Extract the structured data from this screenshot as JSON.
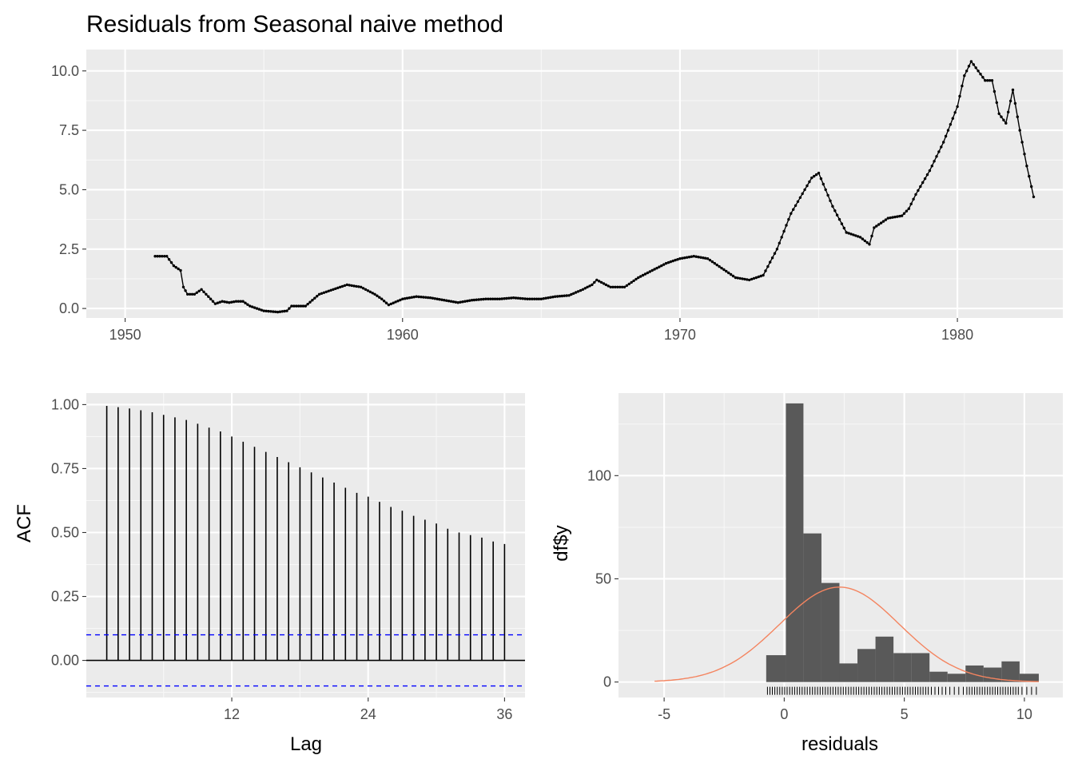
{
  "chart_data": [
    {
      "type": "line",
      "title": "Residuals from Seasonal naive method",
      "xlabel": "",
      "ylabel": "",
      "xlim": [
        1948.6,
        1983.8
      ],
      "ylim": [
        -0.4,
        10.9
      ],
      "x_ticks": [
        1950,
        1960,
        1970,
        1980
      ],
      "x_tick_labels": [
        "1950",
        "1960",
        "1970",
        "1980"
      ],
      "y_ticks": [
        0,
        2.5,
        5,
        7.5,
        10
      ],
      "y_tick_labels": [
        "0.0",
        "2.5",
        "5.0",
        "7.5",
        "10.0"
      ],
      "grid": true,
      "markers": true,
      "series": [
        {
          "x": [
            1951.08,
            1951.5,
            1951.75,
            1952.0,
            1952.1,
            1952.25,
            1952.5,
            1952.75,
            1953.0,
            1953.25,
            1953.5,
            1953.75,
            1954.0,
            1954.25,
            1954.5,
            1954.75,
            1955.0,
            1955.5,
            1955.83,
            1956.0,
            1956.5,
            1957.0,
            1957.5,
            1958.0,
            1958.5,
            1959.0,
            1959.25,
            1959.5,
            1960.0,
            1960.5,
            1961.0,
            1961.5,
            1962.0,
            1962.5,
            1963.0,
            1963.5,
            1964.0,
            1964.5,
            1965.0,
            1965.5,
            1966.0,
            1966.5,
            1966.83,
            1967.0,
            1967.5,
            1968.0,
            1968.5,
            1969.0,
            1969.5,
            1970.0,
            1970.5,
            1971.0,
            1971.5,
            1972.0,
            1972.5,
            1973.0,
            1973.5,
            1974.0,
            1974.5,
            1974.75,
            1975.0,
            1975.25,
            1975.5,
            1976.0,
            1976.5,
            1976.83,
            1977.0,
            1977.5,
            1978.0,
            1978.25,
            1978.5,
            1979.0,
            1979.5,
            1980.0,
            1980.25,
            1980.5,
            1980.75,
            1981.0,
            1981.25,
            1981.5,
            1981.75,
            1982.0,
            1982.25,
            1982.5,
            1982.75
          ],
          "values": [
            2.2,
            2.2,
            1.8,
            1.6,
            0.9,
            0.6,
            0.6,
            0.8,
            0.5,
            0.2,
            0.3,
            0.25,
            0.3,
            0.3,
            0.1,
            0.0,
            -0.1,
            -0.15,
            -0.1,
            0.1,
            0.1,
            0.6,
            0.8,
            1.0,
            0.9,
            0.6,
            0.4,
            0.15,
            0.4,
            0.5,
            0.45,
            0.35,
            0.25,
            0.35,
            0.4,
            0.4,
            0.45,
            0.4,
            0.4,
            0.5,
            0.55,
            0.8,
            1.0,
            1.2,
            0.9,
            0.9,
            1.3,
            1.6,
            1.9,
            2.1,
            2.2,
            2.1,
            1.7,
            1.3,
            1.2,
            1.4,
            2.5,
            4.0,
            5.0,
            5.5,
            5.7,
            5.0,
            4.3,
            3.2,
            3.0,
            2.7,
            3.4,
            3.8,
            3.9,
            4.2,
            4.8,
            5.8,
            7.0,
            8.5,
            9.8,
            10.4,
            10.0,
            9.6,
            9.6,
            8.2,
            7.8,
            9.2,
            7.5,
            6.0,
            4.7
          ]
        }
      ]
    },
    {
      "type": "bar",
      "xlabel": "Lag",
      "ylabel": "ACF",
      "xlim": [
        -0.8,
        37.8
      ],
      "ylim": [
        -0.145,
        1.045
      ],
      "x_ticks": [
        12,
        24,
        36
      ],
      "x_tick_labels": [
        "12",
        "24",
        "36"
      ],
      "y_ticks": [
        0,
        0.25,
        0.5,
        0.75,
        1.0
      ],
      "y_tick_labels": [
        "0.00",
        "0.25",
        "0.50",
        "0.75",
        "1.00"
      ],
      "grid": true,
      "confidence_bound": 0.1,
      "lags": [
        1,
        2,
        3,
        4,
        5,
        6,
        7,
        8,
        9,
        10,
        11,
        12,
        13,
        14,
        15,
        16,
        17,
        18,
        19,
        20,
        21,
        22,
        23,
        24,
        25,
        26,
        27,
        28,
        29,
        30,
        31,
        32,
        33,
        34,
        35,
        36
      ],
      "values": [
        0.995,
        0.99,
        0.985,
        0.978,
        0.97,
        0.96,
        0.95,
        0.94,
        0.925,
        0.91,
        0.895,
        0.875,
        0.855,
        0.835,
        0.815,
        0.795,
        0.775,
        0.755,
        0.735,
        0.715,
        0.695,
        0.675,
        0.655,
        0.64,
        0.62,
        0.6,
        0.585,
        0.565,
        0.55,
        0.535,
        0.515,
        0.5,
        0.49,
        0.48,
        0.465,
        0.455
      ]
    },
    {
      "type": "histogram",
      "xlabel": "residuals",
      "ylabel": "df$y",
      "xlim": [
        -6.9,
        11.6
      ],
      "ylim": [
        -7.5,
        140
      ],
      "x_ticks": [
        -5,
        0,
        5,
        10
      ],
      "x_tick_labels": [
        "-5",
        "0",
        "5",
        "10"
      ],
      "y_ticks": [
        0,
        50,
        100
      ],
      "y_tick_labels": [
        "0",
        "50",
        "100"
      ],
      "grid": true,
      "bars": [
        {
          "x0": -0.75,
          "x1": 0.07,
          "count": 13
        },
        {
          "x0": 0.07,
          "x1": 0.8,
          "count": 135
        },
        {
          "x0": 0.8,
          "x1": 1.55,
          "count": 72
        },
        {
          "x0": 1.55,
          "x1": 2.3,
          "count": 48
        },
        {
          "x0": 2.3,
          "x1": 3.05,
          "count": 9
        },
        {
          "x0": 3.05,
          "x1": 3.8,
          "count": 16
        },
        {
          "x0": 3.8,
          "x1": 4.55,
          "count": 22
        },
        {
          "x0": 4.55,
          "x1": 5.3,
          "count": 14
        },
        {
          "x0": 5.3,
          "x1": 6.05,
          "count": 14
        },
        {
          "x0": 6.05,
          "x1": 6.8,
          "count": 5
        },
        {
          "x0": 6.8,
          "x1": 7.55,
          "count": 4
        },
        {
          "x0": 7.55,
          "x1": 8.3,
          "count": 8
        },
        {
          "x0": 8.3,
          "x1": 9.05,
          "count": 7
        },
        {
          "x0": 9.05,
          "x1": 9.8,
          "count": 10
        },
        {
          "x0": 9.8,
          "x1": 10.6,
          "count": 4
        }
      ],
      "normal_curve": {
        "mean": 2.3,
        "sd": 2.5,
        "peak": 46,
        "x_range": [
          -5.4,
          10.6
        ],
        "color": "#f4845f"
      },
      "rug": true
    }
  ]
}
